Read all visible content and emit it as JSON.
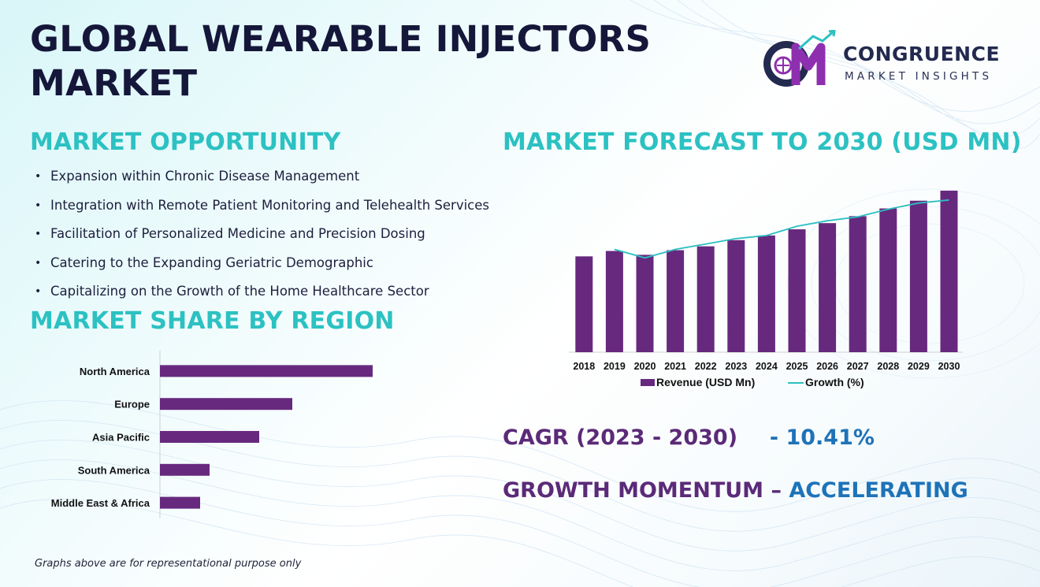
{
  "title_line1": "GLOBAL WEARABLE INJECTORS",
  "title_line2": "MARKET",
  "logo": {
    "name": "CONGRUENCE",
    "tagline": "MARKET INSIGHTS",
    "colors": {
      "dark": "#232a50",
      "accent": "#8e2fb0",
      "teal": "#2cc1c2"
    }
  },
  "opportunity": {
    "heading": "MARKET OPPORTUNITY",
    "items": [
      "Expansion within Chronic Disease Management",
      "Integration with Remote Patient Monitoring and Telehealth Services",
      "Facilitation of Personalized Medicine and Precision Dosing",
      "Catering to the Expanding Geriatric Demographic",
      "Capitalizing on the Growth of the Home Healthcare Sector"
    ]
  },
  "share_heading": "MARKET SHARE BY REGION",
  "forecast_heading": "MARKET FORECAST TO 2030 (USD MN)",
  "cagr": {
    "label": "CAGR (2023 - 2030)",
    "value": "- 10.41%"
  },
  "momentum": {
    "label": "GROWTH MOMENTUM – ",
    "value": "ACCELERATING"
  },
  "footnote": "Graphs above are for representational purpose only",
  "colors": {
    "bar": "#67297e",
    "line": "#2dbfc1",
    "heading": "#2cc1c2",
    "title": "#15173a",
    "emph_purple": "#5b2a78",
    "emph_blue": "#1e73b8"
  },
  "chart_data": [
    {
      "type": "bar",
      "orientation": "horizontal",
      "categories": [
        "North America",
        "Europe",
        "Asia Pacific",
        "South America",
        "Middle East & Africa"
      ],
      "values": [
        45,
        28,
        21,
        10.5,
        8.5
      ],
      "xlim": [
        0,
        50
      ],
      "grid": false,
      "legend": "none",
      "series": [
        {
          "values": [
            45,
            28,
            21,
            10.5,
            8.5
          ]
        }
      ]
    },
    {
      "type": "bar",
      "categories": [
        "2018",
        "2019",
        "2020",
        "2021",
        "2022",
        "2023",
        "2024",
        "2025",
        "2026",
        "2027",
        "2028",
        "2029",
        "2030"
      ],
      "ylim": [
        0,
        210
      ],
      "grid": false,
      "legend": "bottom",
      "series": [
        {
          "name": "Revenue (USD Mn)",
          "kind": "bar",
          "values": [
            124,
            131,
            126,
            132,
            137,
            145,
            151,
            159,
            167,
            176,
            186,
            196,
            209
          ]
        },
        {
          "name": "Growth (%)",
          "kind": "line",
          "values": [
            null,
            133,
            122,
            133,
            140,
            147,
            151,
            163,
            170,
            175,
            185,
            193,
            197
          ]
        }
      ]
    }
  ]
}
